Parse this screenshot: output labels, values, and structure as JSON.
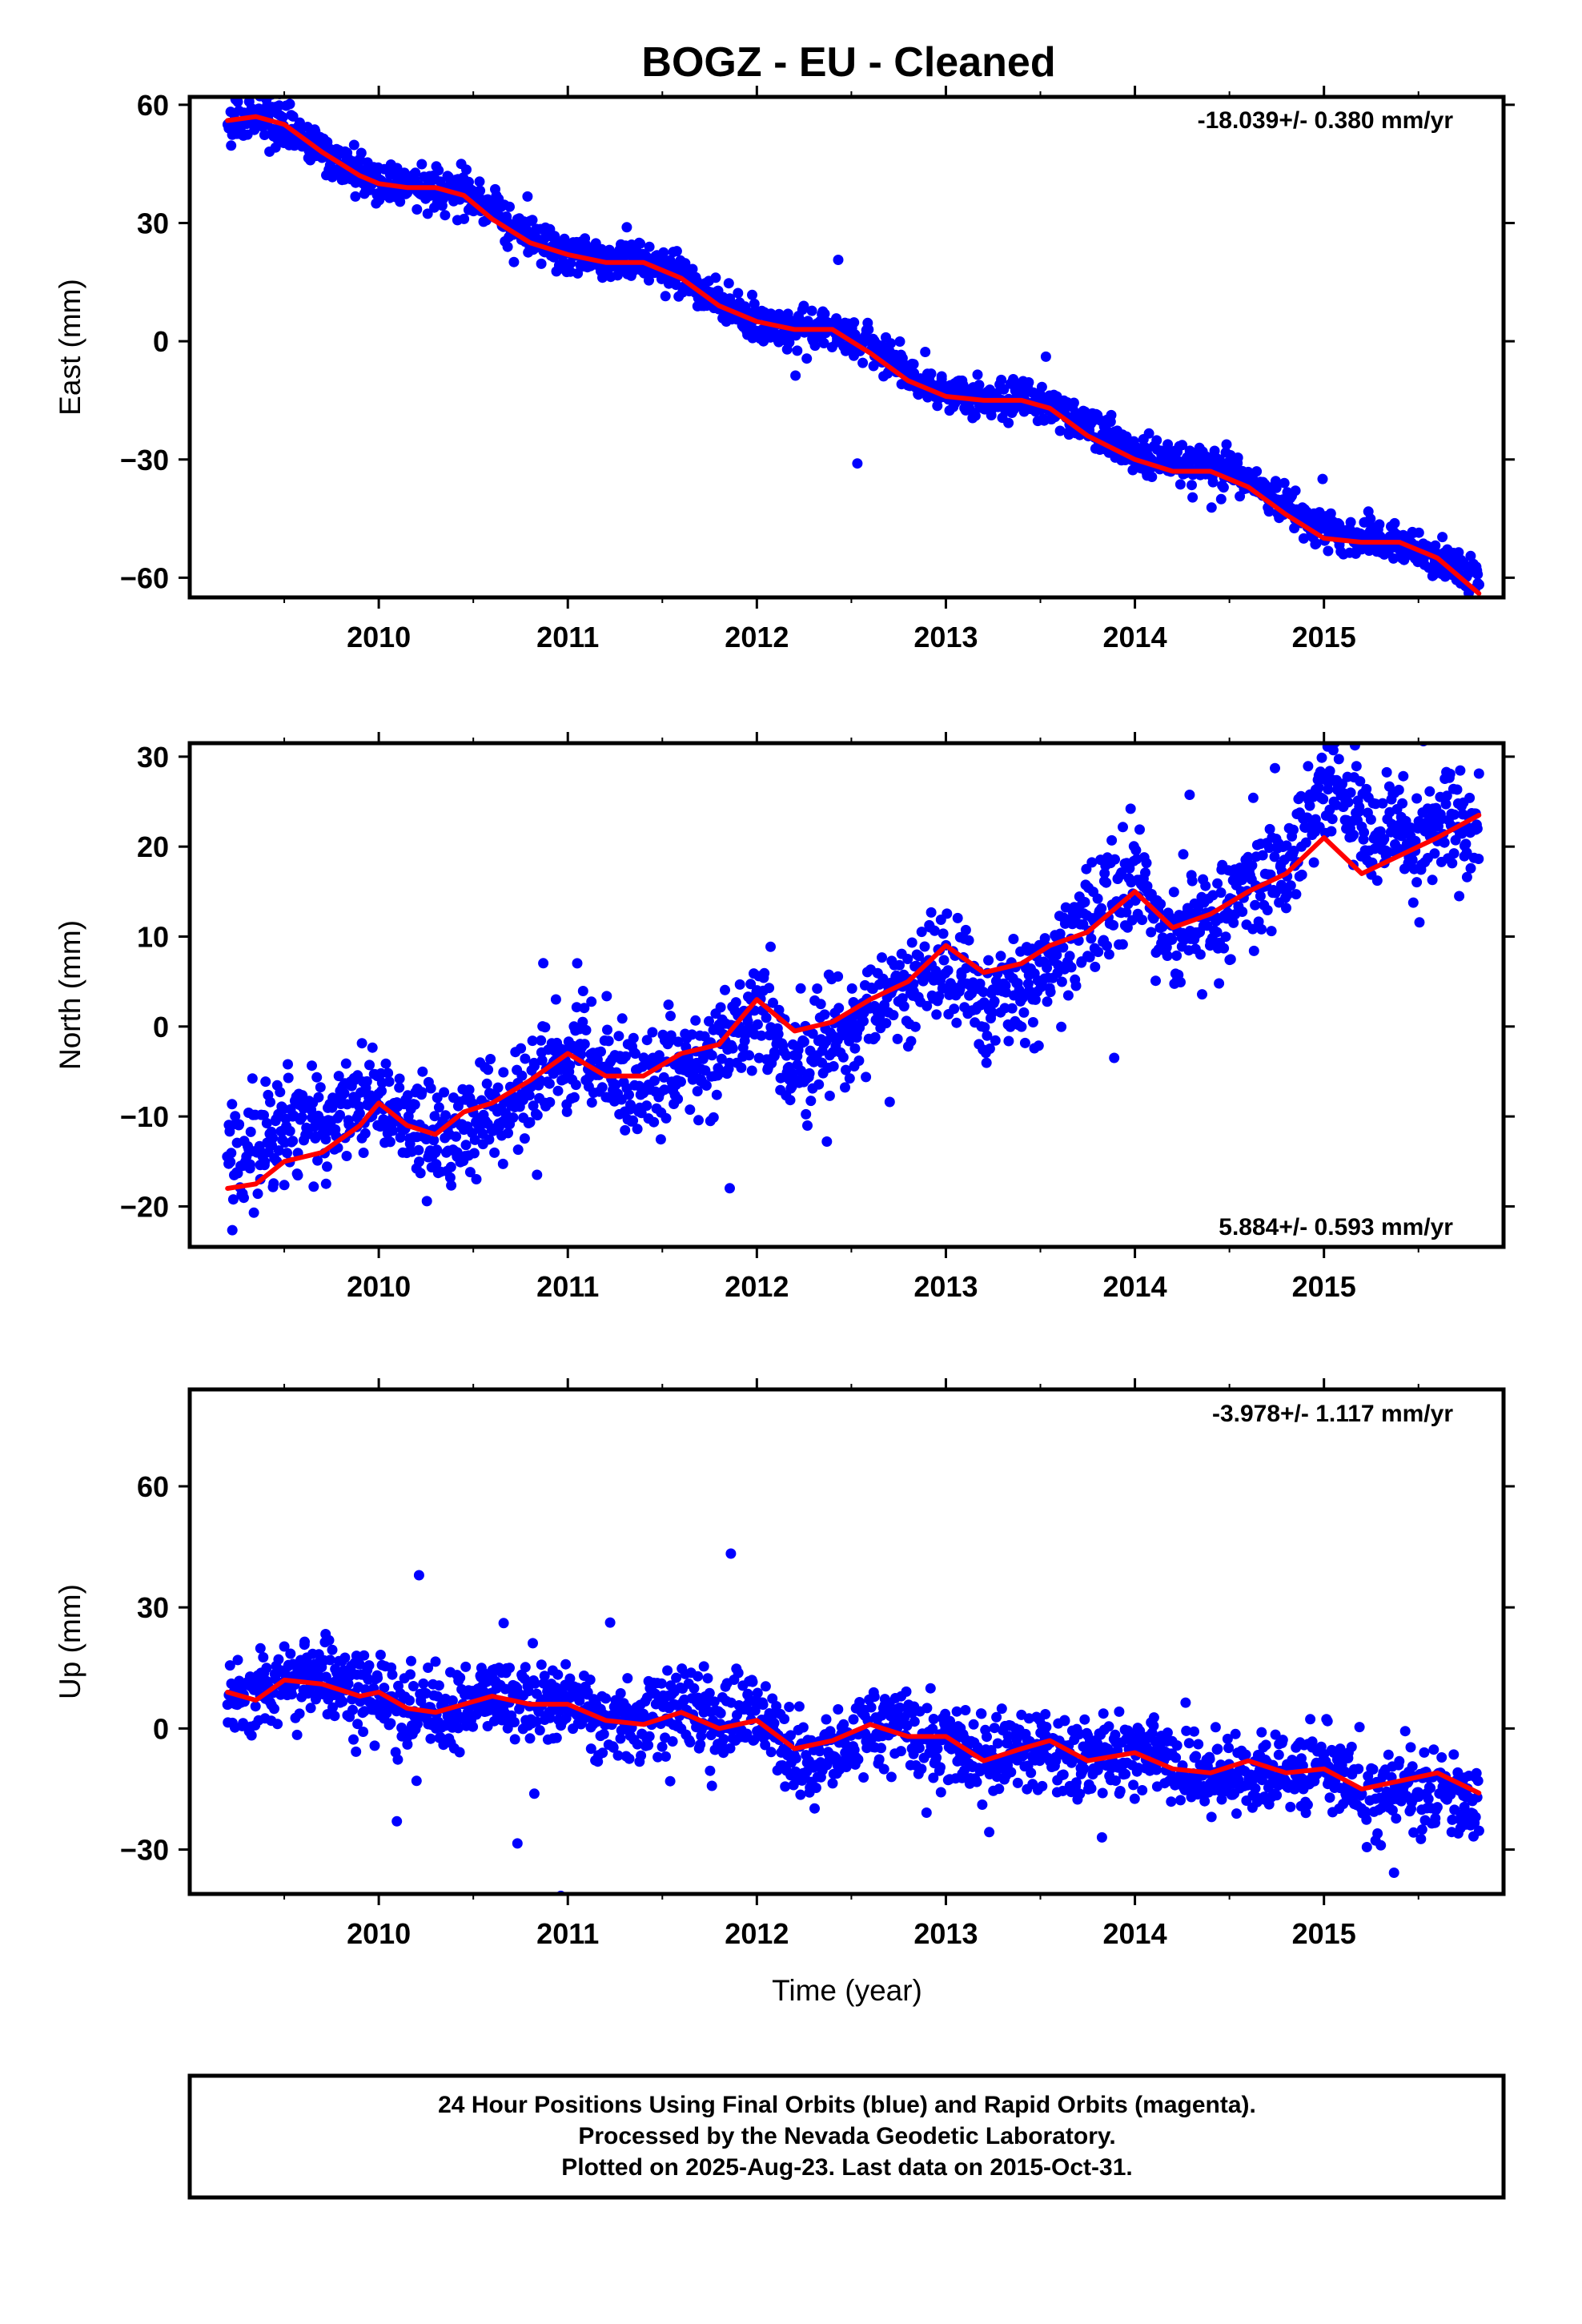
{
  "figure": {
    "title": "BOGZ  - EU - Cleaned",
    "xlabel": "Time (year)",
    "footer_lines": [
      "24 Hour Positions Using Final Orbits (blue) and Rapid Orbits (magenta).",
      "Processed by the Nevada Geodetic Laboratory.",
      "Plotted on 2025-Aug-23. Last data on 2015-Oct-31."
    ]
  },
  "colors": {
    "points": "#0000ff",
    "model": "#ff0000",
    "frame": "#000000"
  },
  "chart_data": [
    {
      "type": "scatter",
      "ylabel": "East (mm)",
      "rate_label": "-18.039+/- 0.380 mm/yr",
      "xlim": [
        2009.0,
        2015.95
      ],
      "ylim": [
        -65,
        62
      ],
      "yticks": [
        60,
        30,
        0,
        -30,
        -60
      ],
      "xticks": [
        2010,
        2011,
        2012,
        2013,
        2014,
        2015
      ],
      "series": [
        {
          "kind": "points",
          "scatter_mm": 2.5,
          "x": [
            2009.2,
            2009.35,
            2009.5,
            2009.7,
            2009.9,
            2010.0,
            2010.15,
            2010.3,
            2010.45,
            2010.6,
            2010.8,
            2011.0,
            2011.2,
            2011.4,
            2011.6,
            2011.8,
            2012.0,
            2012.2,
            2012.4,
            2012.6,
            2012.8,
            2013.0,
            2013.2,
            2013.4,
            2013.55,
            2013.75,
            2014.0,
            2014.2,
            2014.4,
            2014.6,
            2014.8,
            2015.0,
            2015.2,
            2015.4,
            2015.6,
            2015.82
          ],
          "y": [
            55,
            57,
            54,
            48,
            43,
            40,
            39,
            39,
            38,
            33,
            26,
            23,
            20,
            21,
            17,
            10,
            5,
            3,
            4,
            -1,
            -8,
            -13,
            -15,
            -14,
            -16,
            -22,
            -28,
            -31,
            -32,
            -35,
            -42,
            -48,
            -50,
            -51,
            -55,
            -61
          ]
        },
        {
          "kind": "line",
          "x": [
            2009.2,
            2009.35,
            2009.5,
            2009.7,
            2009.9,
            2010.0,
            2010.15,
            2010.3,
            2010.45,
            2010.6,
            2010.8,
            2011.0,
            2011.2,
            2011.4,
            2011.6,
            2011.8,
            2012.0,
            2012.2,
            2012.4,
            2012.6,
            2012.8,
            2013.0,
            2013.2,
            2013.4,
            2013.55,
            2013.75,
            2014.0,
            2014.2,
            2014.4,
            2014.6,
            2014.8,
            2015.0,
            2015.2,
            2015.4,
            2015.6,
            2015.82
          ],
          "y": [
            56,
            57,
            55,
            48,
            42,
            40,
            39,
            39,
            37,
            31,
            25,
            22,
            20,
            20,
            16,
            9,
            5,
            3,
            3,
            -3,
            -10,
            -14,
            -15,
            -15,
            -17,
            -24,
            -30,
            -33,
            -33,
            -37,
            -44,
            -50,
            -51,
            -51,
            -55,
            -64
          ]
        }
      ]
    },
    {
      "type": "scatter",
      "ylabel": "North (mm)",
      "rate_label": "5.884+/- 0.593 mm/yr",
      "xlim": [
        2009.0,
        2015.95
      ],
      "ylim": [
        -24.5,
        31.5
      ],
      "yticks": [
        30,
        20,
        10,
        0,
        -10,
        -20
      ],
      "xticks": [
        2010,
        2011,
        2012,
        2013,
        2014,
        2015
      ],
      "series": [
        {
          "kind": "points",
          "scatter_mm": 3.0,
          "x": [
            2009.2,
            2009.35,
            2009.5,
            2009.7,
            2009.9,
            2010.0,
            2010.15,
            2010.3,
            2010.45,
            2010.6,
            2010.8,
            2011.0,
            2011.2,
            2011.4,
            2011.6,
            2011.8,
            2012.0,
            2012.2,
            2012.4,
            2012.6,
            2012.8,
            2013.0,
            2013.2,
            2013.4,
            2013.55,
            2013.75,
            2014.0,
            2014.2,
            2014.4,
            2014.6,
            2014.8,
            2015.0,
            2015.2,
            2015.4,
            2015.6,
            2015.82
          ],
          "y": [
            -14,
            -13,
            -11,
            -10,
            -9,
            -8,
            -11,
            -13,
            -11,
            -9,
            -8,
            -3,
            -4,
            -6,
            -5,
            -4,
            3,
            -5,
            -2,
            2,
            4,
            7,
            2,
            5,
            6,
            11,
            17,
            10,
            12,
            15,
            17,
            27,
            23,
            21,
            22,
            23
          ]
        },
        {
          "kind": "line",
          "x": [
            2009.2,
            2009.35,
            2009.5,
            2009.7,
            2009.9,
            2010.0,
            2010.15,
            2010.3,
            2010.45,
            2010.6,
            2010.8,
            2011.0,
            2011.2,
            2011.4,
            2011.6,
            2011.8,
            2012.0,
            2012.2,
            2012.4,
            2012.6,
            2012.8,
            2013.0,
            2013.2,
            2013.4,
            2013.55,
            2013.75,
            2014.0,
            2014.2,
            2014.4,
            2014.6,
            2014.8,
            2015.0,
            2015.2,
            2015.4,
            2015.6,
            2015.82
          ],
          "y": [
            -18,
            -17.5,
            -15,
            -14,
            -11,
            -8.5,
            -11,
            -12,
            -9.5,
            -8.5,
            -6,
            -3,
            -5.5,
            -5.5,
            -3,
            -2,
            3,
            -0.5,
            0.5,
            3,
            5,
            9,
            6,
            7,
            9,
            10.5,
            15,
            11,
            12.5,
            15,
            17,
            21,
            17,
            19,
            21,
            23.5
          ]
        }
      ]
    },
    {
      "type": "scatter",
      "ylabel": "Up (mm)",
      "rate_label": "-3.978+/- 1.117 mm/yr",
      "xlim": [
        2009.0,
        2015.95
      ],
      "ylim": [
        -41,
        84
      ],
      "yticks": [
        60,
        30,
        0,
        -30
      ],
      "xticks": [
        2010,
        2011,
        2012,
        2013,
        2014,
        2015
      ],
      "series": [
        {
          "kind": "points",
          "scatter_mm": 5.0,
          "x": [
            2009.2,
            2009.35,
            2009.5,
            2009.7,
            2009.9,
            2010.0,
            2010.15,
            2010.3,
            2010.45,
            2010.6,
            2010.8,
            2011.0,
            2011.2,
            2011.4,
            2011.6,
            2011.8,
            2012.0,
            2012.2,
            2012.4,
            2012.6,
            2012.8,
            2013.0,
            2013.2,
            2013.4,
            2013.55,
            2013.75,
            2014.0,
            2014.2,
            2014.4,
            2014.6,
            2014.8,
            2015.0,
            2015.2,
            2015.4,
            2015.6,
            2015.82
          ],
          "y": [
            9,
            7,
            12,
            14,
            9,
            8,
            5,
            4,
            6,
            8,
            7,
            6,
            2,
            2,
            5,
            2,
            5,
            -8,
            -6,
            1,
            -1,
            -2,
            -8,
            -6,
            -4,
            -8,
            -6,
            -10,
            -12,
            -12,
            -12,
            -8,
            -16,
            -15,
            -14,
            -22
          ]
        },
        {
          "kind": "line",
          "x": [
            2009.2,
            2009.35,
            2009.5,
            2009.7,
            2009.9,
            2010.0,
            2010.15,
            2010.3,
            2010.45,
            2010.6,
            2010.8,
            2011.0,
            2011.2,
            2011.4,
            2011.6,
            2011.8,
            2012.0,
            2012.2,
            2012.4,
            2012.6,
            2012.8,
            2013.0,
            2013.2,
            2013.4,
            2013.55,
            2013.75,
            2014.0,
            2014.2,
            2014.4,
            2014.6,
            2014.8,
            2015.0,
            2015.2,
            2015.4,
            2015.6,
            2015.82
          ],
          "y": [
            9,
            7,
            12,
            11,
            8,
            9,
            5,
            4,
            6,
            8,
            6,
            6,
            2,
            1,
            4,
            0,
            2,
            -5,
            -3,
            1,
            -2,
            -2,
            -8,
            -5,
            -3,
            -8,
            -6,
            -10,
            -11,
            -8,
            -11,
            -10,
            -15,
            -13,
            -11,
            -16
          ]
        }
      ]
    }
  ]
}
